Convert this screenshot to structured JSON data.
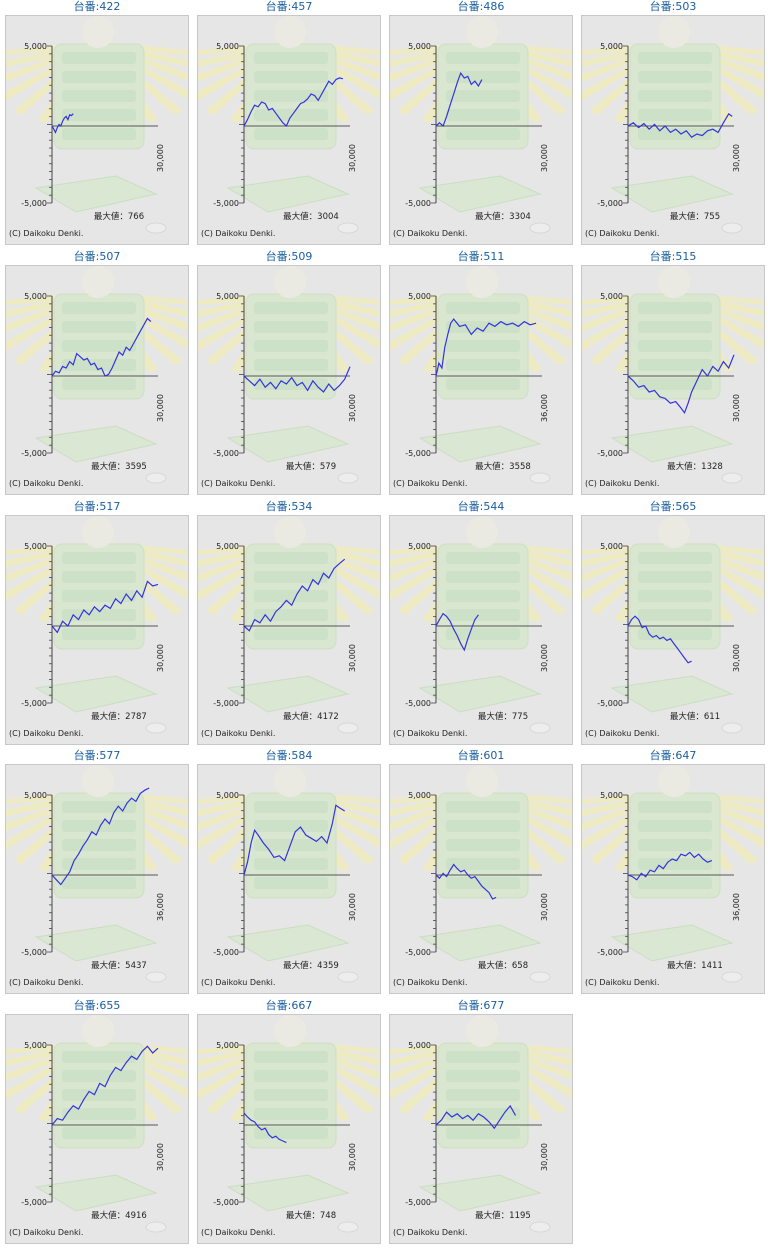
{
  "chart_data": [
    {
      "type": "line",
      "title": "台番:422",
      "max_label": "最大値：766",
      "x_tick": "30,000",
      "y_ticks": [
        "5,000",
        "-5,000"
      ],
      "ylim": [
        -5000,
        5000
      ],
      "xlim": [
        0,
        30000
      ],
      "copyright": "(C) Daikoku Denki.",
      "x": [
        0,
        500,
        1000,
        1500,
        2000,
        2500,
        3000,
        3500,
        4000,
        4500,
        5000,
        5500,
        6000
      ],
      "values": [
        0,
        -200,
        -400,
        -100,
        100,
        0,
        300,
        500,
        600,
        400,
        700,
        650,
        766
      ]
    },
    {
      "type": "line",
      "title": "台番:457",
      "max_label": "最大値：3004",
      "x_tick": "30,000",
      "y_ticks": [
        "5,000",
        "-5,000"
      ],
      "ylim": [
        -5000,
        5000
      ],
      "xlim": [
        0,
        30000
      ],
      "copyright": "(C) Daikoku Denki.",
      "x": [
        0,
        1000,
        2000,
        3000,
        4000,
        5000,
        6000,
        7000,
        8000,
        9000,
        10000,
        11000,
        12000,
        13000,
        14000,
        15000,
        16000,
        17000,
        18000,
        19000,
        20000,
        21000,
        22000,
        23000,
        24000,
        25000,
        26000,
        27000,
        28000
      ],
      "values": [
        0,
        400,
        900,
        1300,
        1200,
        1500,
        1400,
        1000,
        1100,
        800,
        500,
        200,
        0,
        500,
        800,
        1100,
        1400,
        1500,
        1700,
        2000,
        1900,
        1600,
        2000,
        2400,
        2800,
        2600,
        2900,
        3004,
        2950
      ]
    },
    {
      "type": "line",
      "title": "台番:486",
      "max_label": "最大値：3304",
      "x_tick": "30,000",
      "y_ticks": [
        "5,000",
        "-5,000"
      ],
      "ylim": [
        -5000,
        5000
      ],
      "xlim": [
        0,
        30000
      ],
      "copyright": "(C) Daikoku Denki.",
      "x": [
        0,
        1000,
        2000,
        3000,
        4000,
        5000,
        6000,
        7000,
        8000,
        9000,
        10000,
        11000,
        12000,
        13000
      ],
      "values": [
        0,
        200,
        0,
        600,
        1300,
        2000,
        2700,
        3304,
        3000,
        3100,
        2600,
        2800,
        2500,
        2900
      ]
    },
    {
      "type": "line",
      "title": "台番:503",
      "max_label": "最大値：755",
      "x_tick": "30,000",
      "y_ticks": [
        "5,000",
        "-5,000"
      ],
      "ylim": [
        -5000,
        5000
      ],
      "xlim": [
        0,
        30000
      ],
      "copyright": "(C) Daikoku Denki.",
      "x": [
        0,
        1500,
        3000,
        4500,
        6000,
        7500,
        9000,
        10500,
        12000,
        13500,
        15000,
        16500,
        18000,
        19500,
        21000,
        22500,
        24000,
        25500,
        27000,
        28500,
        29500
      ],
      "values": [
        0,
        200,
        -100,
        150,
        -200,
        100,
        -300,
        0,
        -400,
        -200,
        -500,
        -300,
        -700,
        -500,
        -600,
        -300,
        -200,
        -400,
        200,
        755,
        600
      ]
    },
    {
      "type": "line",
      "title": "台番:507",
      "max_label": "最大値：3595",
      "x_tick": "30,000",
      "y_ticks": [
        "5,000",
        "-5,000"
      ],
      "ylim": [
        -5000,
        5000
      ],
      "xlim": [
        0,
        30000
      ],
      "copyright": "(C) Daikoku Denki.",
      "x": [
        0,
        1000,
        2000,
        3000,
        4000,
        5000,
        6000,
        7000,
        8000,
        9000,
        10000,
        11000,
        12000,
        13000,
        14000,
        15000,
        16000,
        17000,
        18000,
        19000,
        20000,
        21000,
        22000,
        23000,
        24000,
        25000,
        26000,
        27000,
        28000
      ],
      "values": [
        0,
        300,
        200,
        600,
        500,
        900,
        700,
        1400,
        1200,
        1000,
        1100,
        700,
        800,
        400,
        500,
        0,
        100,
        500,
        1000,
        1500,
        1300,
        1800,
        1600,
        2000,
        2400,
        2800,
        3200,
        3595,
        3400
      ]
    },
    {
      "type": "line",
      "title": "台番:509",
      "max_label": "最大値：579",
      "x_tick": "30,000",
      "y_ticks": [
        "5,000",
        "-5,000"
      ],
      "ylim": [
        -5000,
        5000
      ],
      "xlim": [
        0,
        30000
      ],
      "copyright": "(C) Daikoku Denki.",
      "x": [
        0,
        1500,
        3000,
        4500,
        6000,
        7500,
        9000,
        10500,
        12000,
        13500,
        15000,
        16500,
        18000,
        19500,
        21000,
        22500,
        24000,
        25500,
        27000,
        28500,
        30000
      ],
      "values": [
        0,
        -300,
        -600,
        -200,
        -700,
        -400,
        -800,
        -300,
        -500,
        -100,
        -600,
        -400,
        -900,
        -300,
        -700,
        -1000,
        -500,
        -900,
        -600,
        -200,
        579
      ]
    },
    {
      "type": "line",
      "title": "台番:511",
      "max_label": "最大値：3558",
      "x_tick": "36,000",
      "y_ticks": [
        "5,000",
        "-5,000"
      ],
      "ylim": [
        -5000,
        5000
      ],
      "xlim": [
        0,
        36000
      ],
      "copyright": "(C) Daikoku Denki.",
      "x": [
        0,
        1000,
        2000,
        3000,
        4000,
        5000,
        6000,
        8000,
        10000,
        12000,
        14000,
        16000,
        18000,
        20000,
        22000,
        24000,
        26000,
        28000,
        30000,
        32000,
        34000
      ],
      "values": [
        0,
        800,
        500,
        1800,
        2600,
        3300,
        3558,
        3100,
        3200,
        2600,
        3000,
        2800,
        3300,
        3100,
        3400,
        3200,
        3300,
        3100,
        3400,
        3200,
        3300
      ]
    },
    {
      "type": "line",
      "title": "台番:515",
      "max_label": "最大値：1328",
      "x_tick": "30,000",
      "y_ticks": [
        "5,000",
        "-5,000"
      ],
      "ylim": [
        -5000,
        5000
      ],
      "xlim": [
        0,
        30000
      ],
      "copyright": "(C) Daikoku Denki.",
      "x": [
        0,
        1500,
        3000,
        4500,
        6000,
        7500,
        9000,
        10500,
        12000,
        13500,
        15000,
        16000,
        17000,
        18000,
        19500,
        21000,
        22500,
        24000,
        25500,
        27000,
        28500,
        30000
      ],
      "values": [
        0,
        -300,
        -700,
        -600,
        -1000,
        -900,
        -1300,
        -1400,
        -1700,
        -1600,
        -2000,
        -2300,
        -1700,
        -1000,
        -300,
        400,
        0,
        600,
        300,
        900,
        500,
        1328
      ]
    },
    {
      "type": "line",
      "title": "台番:517",
      "max_label": "最大値：2787",
      "x_tick": "30,000",
      "y_ticks": [
        "5,000",
        "-5,000"
      ],
      "ylim": [
        -5000,
        5000
      ],
      "xlim": [
        0,
        30000
      ],
      "copyright": "(C) Daikoku Denki.",
      "x": [
        0,
        1500,
        3000,
        4500,
        6000,
        7500,
        9000,
        10500,
        12000,
        13500,
        15000,
        16500,
        18000,
        19500,
        21000,
        22500,
        24000,
        25500,
        27000,
        28500,
        30000
      ],
      "values": [
        0,
        -400,
        300,
        0,
        700,
        400,
        1000,
        700,
        1200,
        900,
        1300,
        1100,
        1700,
        1400,
        2000,
        1600,
        2200,
        1800,
        2787,
        2500,
        2600
      ]
    },
    {
      "type": "line",
      "title": "台番:534",
      "max_label": "最大値：4172",
      "x_tick": "30,000",
      "y_ticks": [
        "5,000",
        "-5,000"
      ],
      "ylim": [
        -5000,
        5000
      ],
      "xlim": [
        0,
        30000
      ],
      "copyright": "(C) Daikoku Denki.",
      "x": [
        0,
        1500,
        3000,
        4500,
        6000,
        7500,
        9000,
        10500,
        12000,
        13500,
        15000,
        16500,
        18000,
        19500,
        21000,
        22500,
        24000,
        25500,
        27000,
        28500
      ],
      "values": [
        0,
        -300,
        400,
        200,
        700,
        300,
        900,
        1200,
        1600,
        1300,
        2000,
        2500,
        2200,
        2900,
        2600,
        3300,
        3000,
        3600,
        3900,
        4172
      ]
    },
    {
      "type": "line",
      "title": "台番:544",
      "max_label": "最大値：775",
      "x_tick": "30,000",
      "y_ticks": [
        "5,000",
        "-5,000"
      ],
      "ylim": [
        -5000,
        5000
      ],
      "xlim": [
        0,
        30000
      ],
      "copyright": "(C) Daikoku Denki.",
      "x": [
        0,
        1000,
        2000,
        3000,
        4000,
        5000,
        6000,
        7000,
        8000,
        9000,
        10000,
        11000,
        12000
      ],
      "values": [
        0,
        400,
        775,
        600,
        300,
        -200,
        -600,
        -1100,
        -1500,
        -800,
        -200,
        400,
        700
      ]
    },
    {
      "type": "line",
      "title": "台番:565",
      "max_label": "最大値：611",
      "x_tick": "30,000",
      "y_ticks": [
        "5,000",
        "-5,000"
      ],
      "ylim": [
        -5000,
        5000
      ],
      "xlim": [
        0,
        30000
      ],
      "copyright": "(C) Daikoku Denki.",
      "x": [
        0,
        1000,
        2000,
        3000,
        4000,
        5000,
        6000,
        7000,
        8000,
        9000,
        10000,
        11000,
        12000,
        13000,
        14000,
        15000,
        16000,
        17000,
        18000
      ],
      "values": [
        0,
        400,
        611,
        400,
        -100,
        0,
        -500,
        -700,
        -600,
        -800,
        -700,
        -900,
        -800,
        -1100,
        -1400,
        -1700,
        -2000,
        -2300,
        -2200
      ]
    },
    {
      "type": "line",
      "title": "台番:577",
      "max_label": "最大値：5437",
      "x_tick": "36,000",
      "y_ticks": [
        "5,000",
        "-5,000"
      ],
      "ylim": [
        -5000,
        5000
      ],
      "xlim": [
        0,
        36000
      ],
      "copyright": "(C) Daikoku Denki.",
      "x": [
        0,
        1500,
        3000,
        4500,
        6000,
        7500,
        9000,
        10500,
        12000,
        13500,
        15000,
        16500,
        18000,
        19500,
        21000,
        22500,
        24000,
        25500,
        27000,
        28500,
        30000,
        31500,
        33000
      ],
      "values": [
        0,
        -300,
        -600,
        -200,
        200,
        900,
        1300,
        1800,
        2200,
        2700,
        2500,
        3100,
        3500,
        3200,
        3900,
        4300,
        4000,
        4500,
        4800,
        4600,
        5100,
        5300,
        5437
      ]
    },
    {
      "type": "line",
      "title": "台番:584",
      "max_label": "最大値：4359",
      "x_tick": "30,000",
      "y_ticks": [
        "5,000",
        "-5,000"
      ],
      "ylim": [
        -5000,
        5000
      ],
      "xlim": [
        0,
        30000
      ],
      "copyright": "(C) Daikoku Denki.",
      "x": [
        0,
        1000,
        2000,
        3000,
        4000,
        5500,
        7000,
        8500,
        10000,
        11500,
        13000,
        14500,
        16000,
        17500,
        19000,
        20500,
        22000,
        23500,
        25000,
        26000,
        27000,
        28500
      ],
      "values": [
        0,
        800,
        2000,
        2800,
        2500,
        2000,
        1600,
        1100,
        1200,
        900,
        1800,
        2700,
        3000,
        2500,
        2300,
        2100,
        2400,
        2000,
        3200,
        4359,
        4200,
        4000
      ]
    },
    {
      "type": "line",
      "title": "台番:601",
      "max_label": "最大値：658",
      "x_tick": "30,000",
      "y_ticks": [
        "5,000",
        "-5,000"
      ],
      "ylim": [
        -5000,
        5000
      ],
      "xlim": [
        0,
        30000
      ],
      "copyright": "(C) Daikoku Denki.",
      "x": [
        0,
        1000,
        2000,
        3000,
        4000,
        5000,
        6000,
        7000,
        8000,
        9000,
        10000,
        11000,
        12000,
        13000,
        14000,
        15000,
        16000,
        17000
      ],
      "values": [
        0,
        -200,
        100,
        -100,
        300,
        658,
        400,
        200,
        300,
        0,
        -200,
        -100,
        -400,
        -700,
        -900,
        -1100,
        -1500,
        -1400
      ]
    },
    {
      "type": "line",
      "title": "台番:647",
      "max_label": "最大値：1411",
      "x_tick": "36,000",
      "y_ticks": [
        "5,000",
        "-5,000"
      ],
      "ylim": [
        -5000,
        5000
      ],
      "xlim": [
        0,
        36000
      ],
      "copyright": "(C) Daikoku Denki.",
      "x": [
        0,
        1500,
        3000,
        4500,
        6000,
        7500,
        9000,
        10500,
        12000,
        13500,
        15000,
        16500,
        18000,
        19500,
        21000,
        22500,
        24000,
        25500,
        27000,
        28500
      ],
      "values": [
        0,
        -100,
        -300,
        100,
        -100,
        300,
        200,
        600,
        400,
        800,
        1000,
        900,
        1300,
        1200,
        1411,
        1100,
        1300,
        1000,
        800,
        900
      ]
    },
    {
      "type": "line",
      "title": "台番:655",
      "max_label": "最大値：4916",
      "x_tick": "30,000",
      "y_ticks": [
        "5,000",
        "-5,000"
      ],
      "ylim": [
        -5000,
        5000
      ],
      "xlim": [
        0,
        30000
      ],
      "copyright": "(C) Daikoku Denki.",
      "x": [
        0,
        1500,
        3000,
        4500,
        6000,
        7500,
        9000,
        10500,
        12000,
        13500,
        15000,
        16500,
        18000,
        19500,
        21000,
        22500,
        24000,
        25500,
        27000,
        28500,
        30000
      ],
      "values": [
        0,
        400,
        300,
        800,
        1200,
        1000,
        1600,
        2100,
        1900,
        2600,
        2400,
        3100,
        3600,
        3400,
        3900,
        4300,
        4100,
        4600,
        4916,
        4500,
        4800
      ]
    },
    {
      "type": "line",
      "title": "台番:667",
      "max_label": "最大値：748",
      "x_tick": "30,000",
      "y_ticks": [
        "5,000",
        "-5,000"
      ],
      "ylim": [
        -5000,
        5000
      ],
      "xlim": [
        0,
        30000
      ],
      "copyright": "(C) Daikoku Denki.",
      "x": [
        0,
        1000,
        2000,
        3000,
        4000,
        5000,
        6000,
        7000,
        8000,
        9000,
        10000,
        11000,
        12000
      ],
      "values": [
        748,
        500,
        300,
        200,
        -100,
        -300,
        -200,
        -600,
        -800,
        -700,
        -900,
        -1000,
        -1100
      ]
    },
    {
      "type": "line",
      "title": "台番:677",
      "max_label": "最大値：1195",
      "x_tick": "30,000",
      "y_ticks": [
        "5,000",
        "-5,000"
      ],
      "ylim": [
        -5000,
        5000
      ],
      "xlim": [
        0,
        30000
      ],
      "copyright": "(C) Daikoku Denki.",
      "x": [
        0,
        1500,
        3000,
        4500,
        6000,
        7500,
        9000,
        10500,
        12000,
        13500,
        15000,
        16500,
        18000,
        19500,
        21000,
        22500
      ],
      "values": [
        0,
        300,
        800,
        500,
        700,
        400,
        600,
        300,
        700,
        500,
        200,
        -200,
        300,
        800,
        1195,
        600
      ]
    }
  ],
  "colors": {
    "line": "#3333dd",
    "title": "#1a5fa0",
    "panel_bg": "#e6e6e6",
    "axis": "#444444",
    "zero_line": "#555555"
  }
}
